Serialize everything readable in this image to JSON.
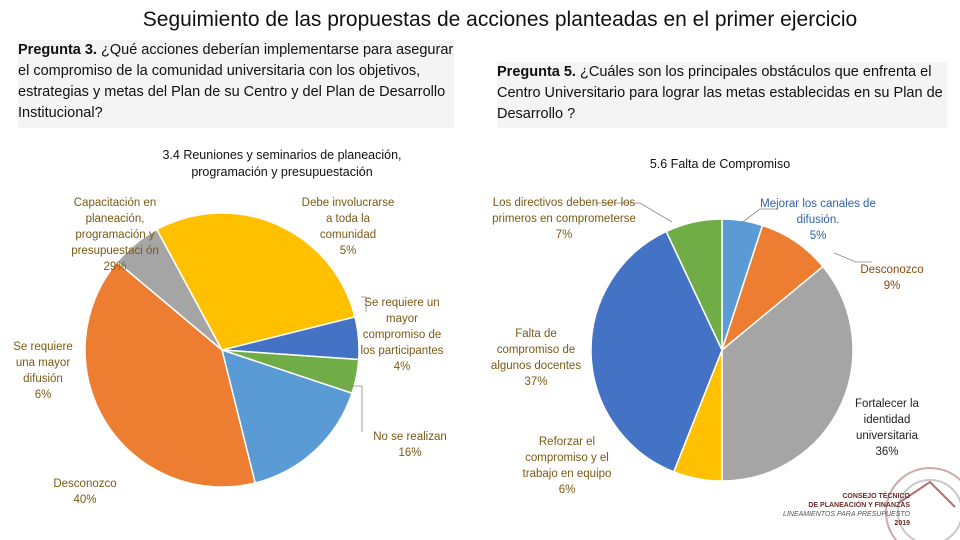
{
  "title": "Seguimiento de las propuestas de acciones planteadas en el primer ejercicio",
  "question_left": {
    "bold": "Pregunta 3.",
    "text": " ¿Qué acciones deberían implementarse para asegurar el compromiso de la comunidad universitaria con los objetivos, estrategias y metas del Plan de su Centro y del Plan de Desarrollo Institucional?"
  },
  "question_right": {
    "bold": "Pregunta 5.",
    "text": " ¿Cuáles son los principales obstáculos que enfrenta el Centro Universitario para lograr las metas establecidas en su Plan de Desarrollo ?"
  },
  "chart_data": [
    {
      "type": "pie",
      "title": "3.4 Reuniones y seminarios de planeación, programación y presupuestación",
      "slices": [
        {
          "label": "Debe involucrarse a toda la comunidad",
          "value": 5,
          "display": "5%",
          "color": "#4472c4"
        },
        {
          "label": "Se requiere un mayor compromiso de los participantes",
          "value": 4,
          "display": "4%",
          "color": "#70ad47"
        },
        {
          "label": "No se realizan",
          "value": 16,
          "display": "16%",
          "color": "#5b9bd5"
        },
        {
          "label": "Desconozco",
          "value": 40,
          "display": "40%",
          "color": "#ed7d31"
        },
        {
          "label": "Se requiere una mayor difusión",
          "value": 6,
          "display": "6%",
          "color": "#a5a5a5"
        },
        {
          "label": "Capacitación en planeación, programación y presupuestaci ón",
          "value": 29,
          "display": "29%",
          "color": "#ffc000"
        }
      ]
    },
    {
      "type": "pie",
      "title": "5.6 Falta de Compromiso",
      "slices": [
        {
          "label": "Mejorar los canales de difusión.",
          "value": 5,
          "display": "5%",
          "color": "#5b9bd5"
        },
        {
          "label": "Desconozco",
          "value": 9,
          "display": "9%",
          "color": "#ed7d31"
        },
        {
          "label": "Fortalecer la identidad universitaria",
          "value": 36,
          "display": "36%",
          "color": "#a5a5a5"
        },
        {
          "label": "Reforzar el compromiso y el trabajo en equipo",
          "value": 6,
          "display": "6%",
          "color": "#ffc000"
        },
        {
          "label": "Falta de compromiso de algunos docentes",
          "value": 37,
          "display": "37%",
          "color": "#4472c4"
        },
        {
          "label": "Los directivos deben ser los primeros en comprometerse",
          "value": 7,
          "display": "7%",
          "color": "#70ad47"
        }
      ]
    }
  ],
  "logo": {
    "line1": "Consejo Técnico",
    "line2": "de Planeación y Finanzas",
    "line3": "Lineamientos para Presupuesto",
    "line4": "2019"
  }
}
